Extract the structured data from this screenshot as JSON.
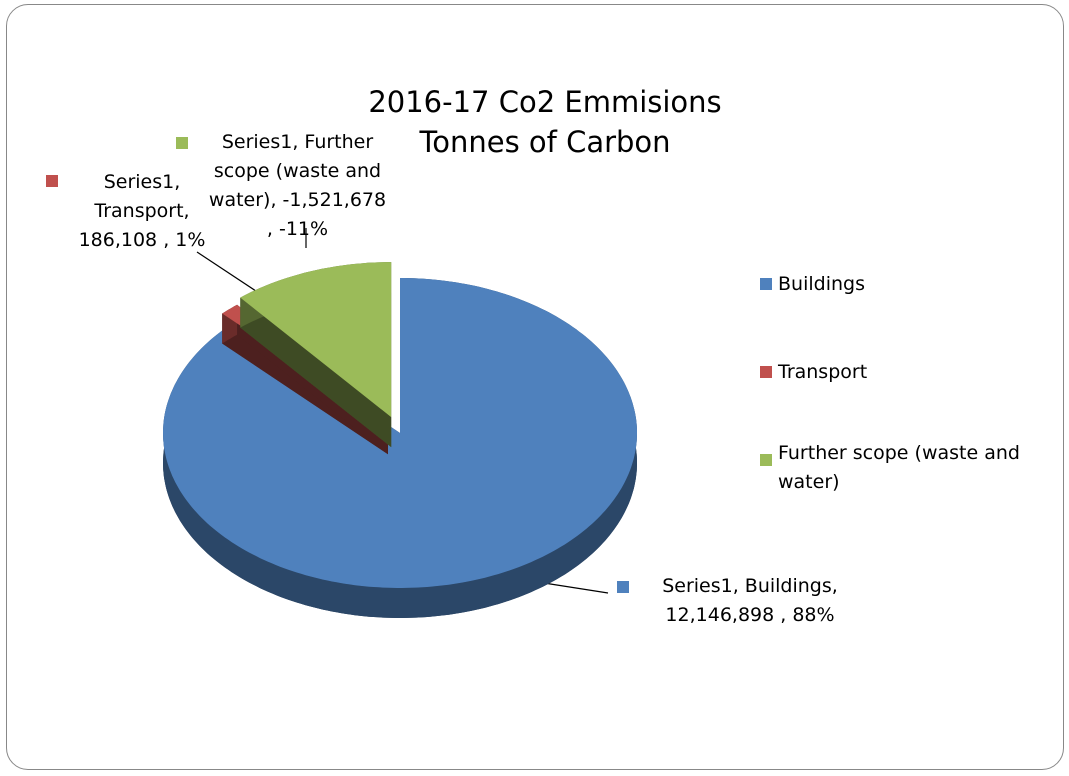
{
  "chart_data": {
    "type": "pie3d",
    "title": "2016-17 Co2 Emmisions Tonnes of Carbon",
    "series_name": "Series1",
    "categories": [
      "Buildings",
      "Transport",
      "Further scope (waste and water)"
    ],
    "values": [
      12146898,
      186108,
      -1521678
    ],
    "value_labels": [
      "Series1, Buildings, 12,146,898 , 88%",
      "Series1, Transport, 186,108 , 1%",
      "Series1, Further scope (waste and water), -1,521,678 , -11%"
    ],
    "colors": [
      "#4f81bd",
      "#c0504d",
      "#9bbb59"
    ],
    "legend": "right"
  }
}
